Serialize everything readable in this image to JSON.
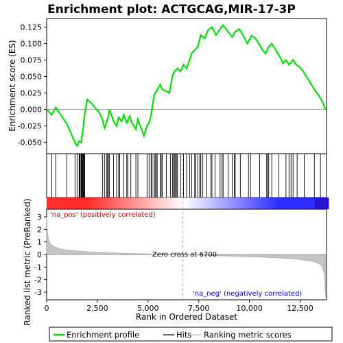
{
  "chart_data": {
    "type": "line",
    "title": "Enrichment plot: ACTGCAG,MIR-17-3P",
    "top_panel": {
      "ylabel": "Enrichment score (ES)",
      "ylim": [
        -0.067,
        0.138
      ],
      "yticks": [
        "-0.050",
        "-0.025",
        "0.000",
        "0.025",
        "0.050",
        "0.075",
        "0.100",
        "0.125"
      ],
      "ytick_values": [
        -0.05,
        -0.025,
        0.0,
        0.025,
        0.05,
        0.075,
        0.1,
        0.125
      ],
      "series": [
        {
          "name": "Enrichment profile",
          "color": "#00dd00",
          "x": [
            0,
            250,
            450,
            1000,
            1400,
            1500,
            1600,
            1700,
            1800,
            1850,
            2000,
            2200,
            2600,
            2750,
            2850,
            2950,
            3050,
            3100,
            3300,
            3450,
            3550,
            3700,
            3800,
            3950,
            4100,
            4200,
            4400,
            4500,
            4800,
            4950,
            5050,
            5150,
            5300,
            5450,
            5600,
            5700,
            5900,
            6050,
            6200,
            6300,
            6450,
            6600,
            6750,
            6900,
            7050,
            7150,
            7300,
            7450,
            7600,
            7800,
            7950,
            8150,
            8350,
            8550,
            8700,
            8900,
            9150,
            9300,
            9500,
            9700,
            9900,
            10100,
            10300,
            10500,
            10650,
            10800,
            10950,
            11100,
            11300,
            11500,
            11650,
            11800,
            11950,
            12150,
            12300,
            12450,
            12650,
            12850,
            13050,
            13250,
            13450,
            13600,
            13750
          ],
          "y": [
            0.0,
            -0.008,
            0.003,
            -0.022,
            -0.05,
            -0.055,
            -0.048,
            -0.05,
            -0.03,
            -0.012,
            0.015,
            0.01,
            -0.005,
            -0.015,
            -0.028,
            -0.02,
            -0.01,
            0.0,
            -0.018,
            -0.025,
            -0.012,
            -0.018,
            -0.008,
            -0.02,
            -0.01,
            -0.02,
            -0.03,
            -0.015,
            -0.04,
            -0.025,
            -0.02,
            -0.008,
            0.022,
            0.03,
            0.038,
            0.03,
            0.028,
            0.025,
            0.05,
            0.058,
            0.062,
            0.058,
            0.068,
            0.062,
            0.075,
            0.085,
            0.09,
            0.095,
            0.113,
            0.108,
            0.12,
            0.125,
            0.113,
            0.122,
            0.128,
            0.12,
            0.11,
            0.118,
            0.122,
            0.112,
            0.1,
            0.112,
            0.108,
            0.098,
            0.09,
            0.085,
            0.095,
            0.1,
            0.09,
            0.08,
            0.07,
            0.075,
            0.068,
            0.075,
            0.068,
            0.065,
            0.058,
            0.048,
            0.038,
            0.028,
            0.02,
            0.012,
            0.0
          ]
        }
      ],
      "hits_label": "Hits",
      "hit_positions": [
        250,
        450,
        1000,
        1400,
        1500,
        1600,
        1620,
        1650,
        1700,
        1720,
        1750,
        1780,
        1800,
        1830,
        1850,
        1880,
        2750,
        2850,
        2950,
        3000,
        3050,
        3100,
        3300,
        3450,
        3550,
        3600,
        3800,
        3950,
        4000,
        4150,
        4400,
        4500,
        4950,
        5050,
        5150,
        5200,
        5300,
        5350,
        5400,
        5450,
        5600,
        5650,
        5700,
        5900,
        6100,
        6200,
        6250,
        6300,
        6350,
        6400,
        6450,
        6600,
        6750,
        6900,
        7050,
        7150,
        7300,
        7350,
        7450,
        7550,
        7600,
        7700,
        7900,
        8100,
        8150,
        8300,
        8550,
        8650,
        8700,
        8950,
        9150,
        9250,
        9300,
        9550,
        9950,
        10050,
        10500,
        10850,
        10900,
        10950,
        11100,
        11450,
        11800,
        11950,
        12050,
        12150,
        12350,
        12700,
        13200,
        13500
      ]
    },
    "bottom_panel": {
      "ylabel": "Ranked list metric (PreRanked)",
      "xlabel": "Rank in Ordered Dataset",
      "ylim": [
        -3.6,
        3.6
      ],
      "yticks": [
        "-3",
        "-2",
        "-1",
        "0",
        "1",
        "2",
        "3"
      ],
      "ytick_values": [
        -3,
        -2,
        -1,
        0,
        1,
        2,
        3
      ],
      "xlim": [
        0,
        13800
      ],
      "xticks": [
        "0",
        "2,500",
        "5,000",
        "7,500",
        "10,000",
        "12,500"
      ],
      "xtick_values": [
        0,
        2500,
        5000,
        7500,
        10000,
        12500
      ],
      "metric_curve": {
        "name": "Ranking metric scores",
        "x": [
          0,
          20,
          50,
          100,
          200,
          400,
          700,
          1000,
          2000,
          3000,
          4000,
          5000,
          6000,
          6700,
          7500,
          8500,
          9500,
          10500,
          11500,
          12000,
          12500,
          13000,
          13300,
          13500,
          13600,
          13700,
          13750
        ],
        "y": [
          3.0,
          2.3,
          1.6,
          1.1,
          0.8,
          0.6,
          0.45,
          0.35,
          0.22,
          0.15,
          0.09,
          0.05,
          0.02,
          0.0,
          -0.04,
          -0.1,
          -0.15,
          -0.2,
          -0.28,
          -0.33,
          -0.4,
          -0.5,
          -0.62,
          -0.8,
          -1.0,
          -1.6,
          -3.4
        ]
      },
      "zero_cross_label": "Zero cross at 6700",
      "zero_cross": 6700,
      "pos_label": "'na_pos' (positively correlated)",
      "neg_label": "'na_neg' (negatively correlated)"
    },
    "legend": {
      "items": [
        "Enrichment profile",
        "Hits",
        "Ranking metric scores"
      ],
      "colors": [
        "#00dd00",
        "#000000",
        "#bbbbbb"
      ]
    }
  }
}
